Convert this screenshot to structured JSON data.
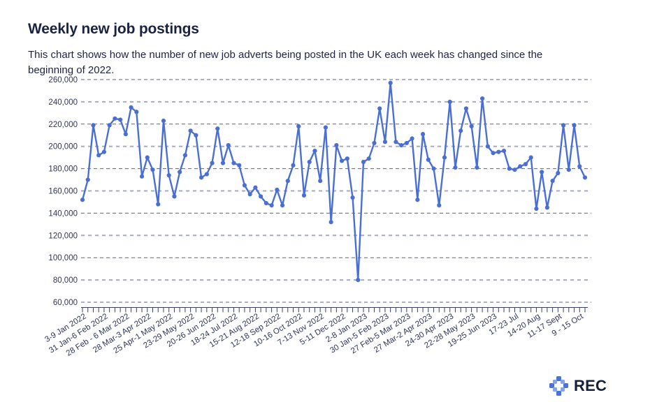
{
  "header": {
    "title": "Weekly new job postings",
    "subtitle": "This chart shows how the number of new job adverts being posted in the UK each week has changed since the beginning of 2022."
  },
  "footer": {
    "logo_text": "REC",
    "logo_icon": "rec-diamond-dots-icon"
  },
  "colors": {
    "line": "#4a6fd4",
    "text_dark_navy": "#1b2342",
    "axis_label": "#2c3557",
    "grid_dark": "#5a6180",
    "grid_light": "#a6abbc",
    "background": "#ffffff"
  },
  "chart_data": {
    "type": "line",
    "title": "Weekly new job postings",
    "xlabel": "",
    "ylabel": "",
    "ylim": [
      60000,
      260000
    ],
    "y_ticks": [
      260000,
      240000,
      220000,
      200000,
      180000,
      160000,
      140000,
      120000,
      100000,
      80000,
      60000
    ],
    "y_tick_labels": [
      "260,000",
      "240,000",
      "220,000",
      "200,000",
      "180,000",
      "160,000",
      "140,000",
      "120,000",
      "100,000",
      "80,000",
      "60,000"
    ],
    "grid": "horizontal-dashed",
    "legend": "none",
    "marker": "circle",
    "label_every": 4,
    "x_tick_labels": [
      "3-9 Jan 2022",
      "31 Jan-6 Feb 2022",
      "28 Feb - 6 Mar 2022",
      "28 Mar-3 Apr 2022",
      "25 Apr-1 May 2022",
      "23-29 May 2022",
      "20-26 Jun 2022",
      "18-24 Jul 2022",
      "15-21 Aug 2022",
      "12-18 Sep 2022",
      "10-16 Oct 2022",
      "7-13 Nov 2022",
      "5-11 Dec 2022",
      "2-8 Jan 2023",
      "30 Jan-5 Feb 2023",
      "27 Feb-5 Mar 2023",
      "27 Mar-2 Apr 2023",
      "24-30 Apr 2023",
      "22-28 May 2023",
      "19-25 Jun 2023",
      "17-23 Jul",
      "14-20 Aug",
      "11-17 Sept",
      "9 - 15 Oct"
    ],
    "values": [
      152000,
      170000,
      219000,
      192000,
      195000,
      219000,
      225000,
      224000,
      211000,
      235000,
      231000,
      173000,
      190000,
      179000,
      148000,
      223000,
      174000,
      155000,
      177000,
      192000,
      214000,
      210000,
      172000,
      175000,
      185000,
      216000,
      185000,
      201000,
      185000,
      183000,
      165000,
      157000,
      163000,
      155000,
      149000,
      147000,
      161000,
      147000,
      169000,
      183000,
      218000,
      156000,
      186000,
      196000,
      169000,
      217000,
      132000,
      201000,
      187000,
      189000,
      154000,
      80000,
      186000,
      189000,
      203000,
      234000,
      204000,
      257000,
      204000,
      201000,
      203000,
      207000,
      152000,
      211000,
      188000,
      180000,
      147000,
      190000,
      240000,
      181000,
      214000,
      234000,
      218000,
      181000,
      243000,
      200000,
      194000,
      195000,
      196000,
      180000,
      179000,
      182000,
      184000,
      190000,
      144000,
      177000,
      145000,
      169000,
      176000,
      219000,
      179000,
      219000,
      182000,
      172000
    ]
  }
}
